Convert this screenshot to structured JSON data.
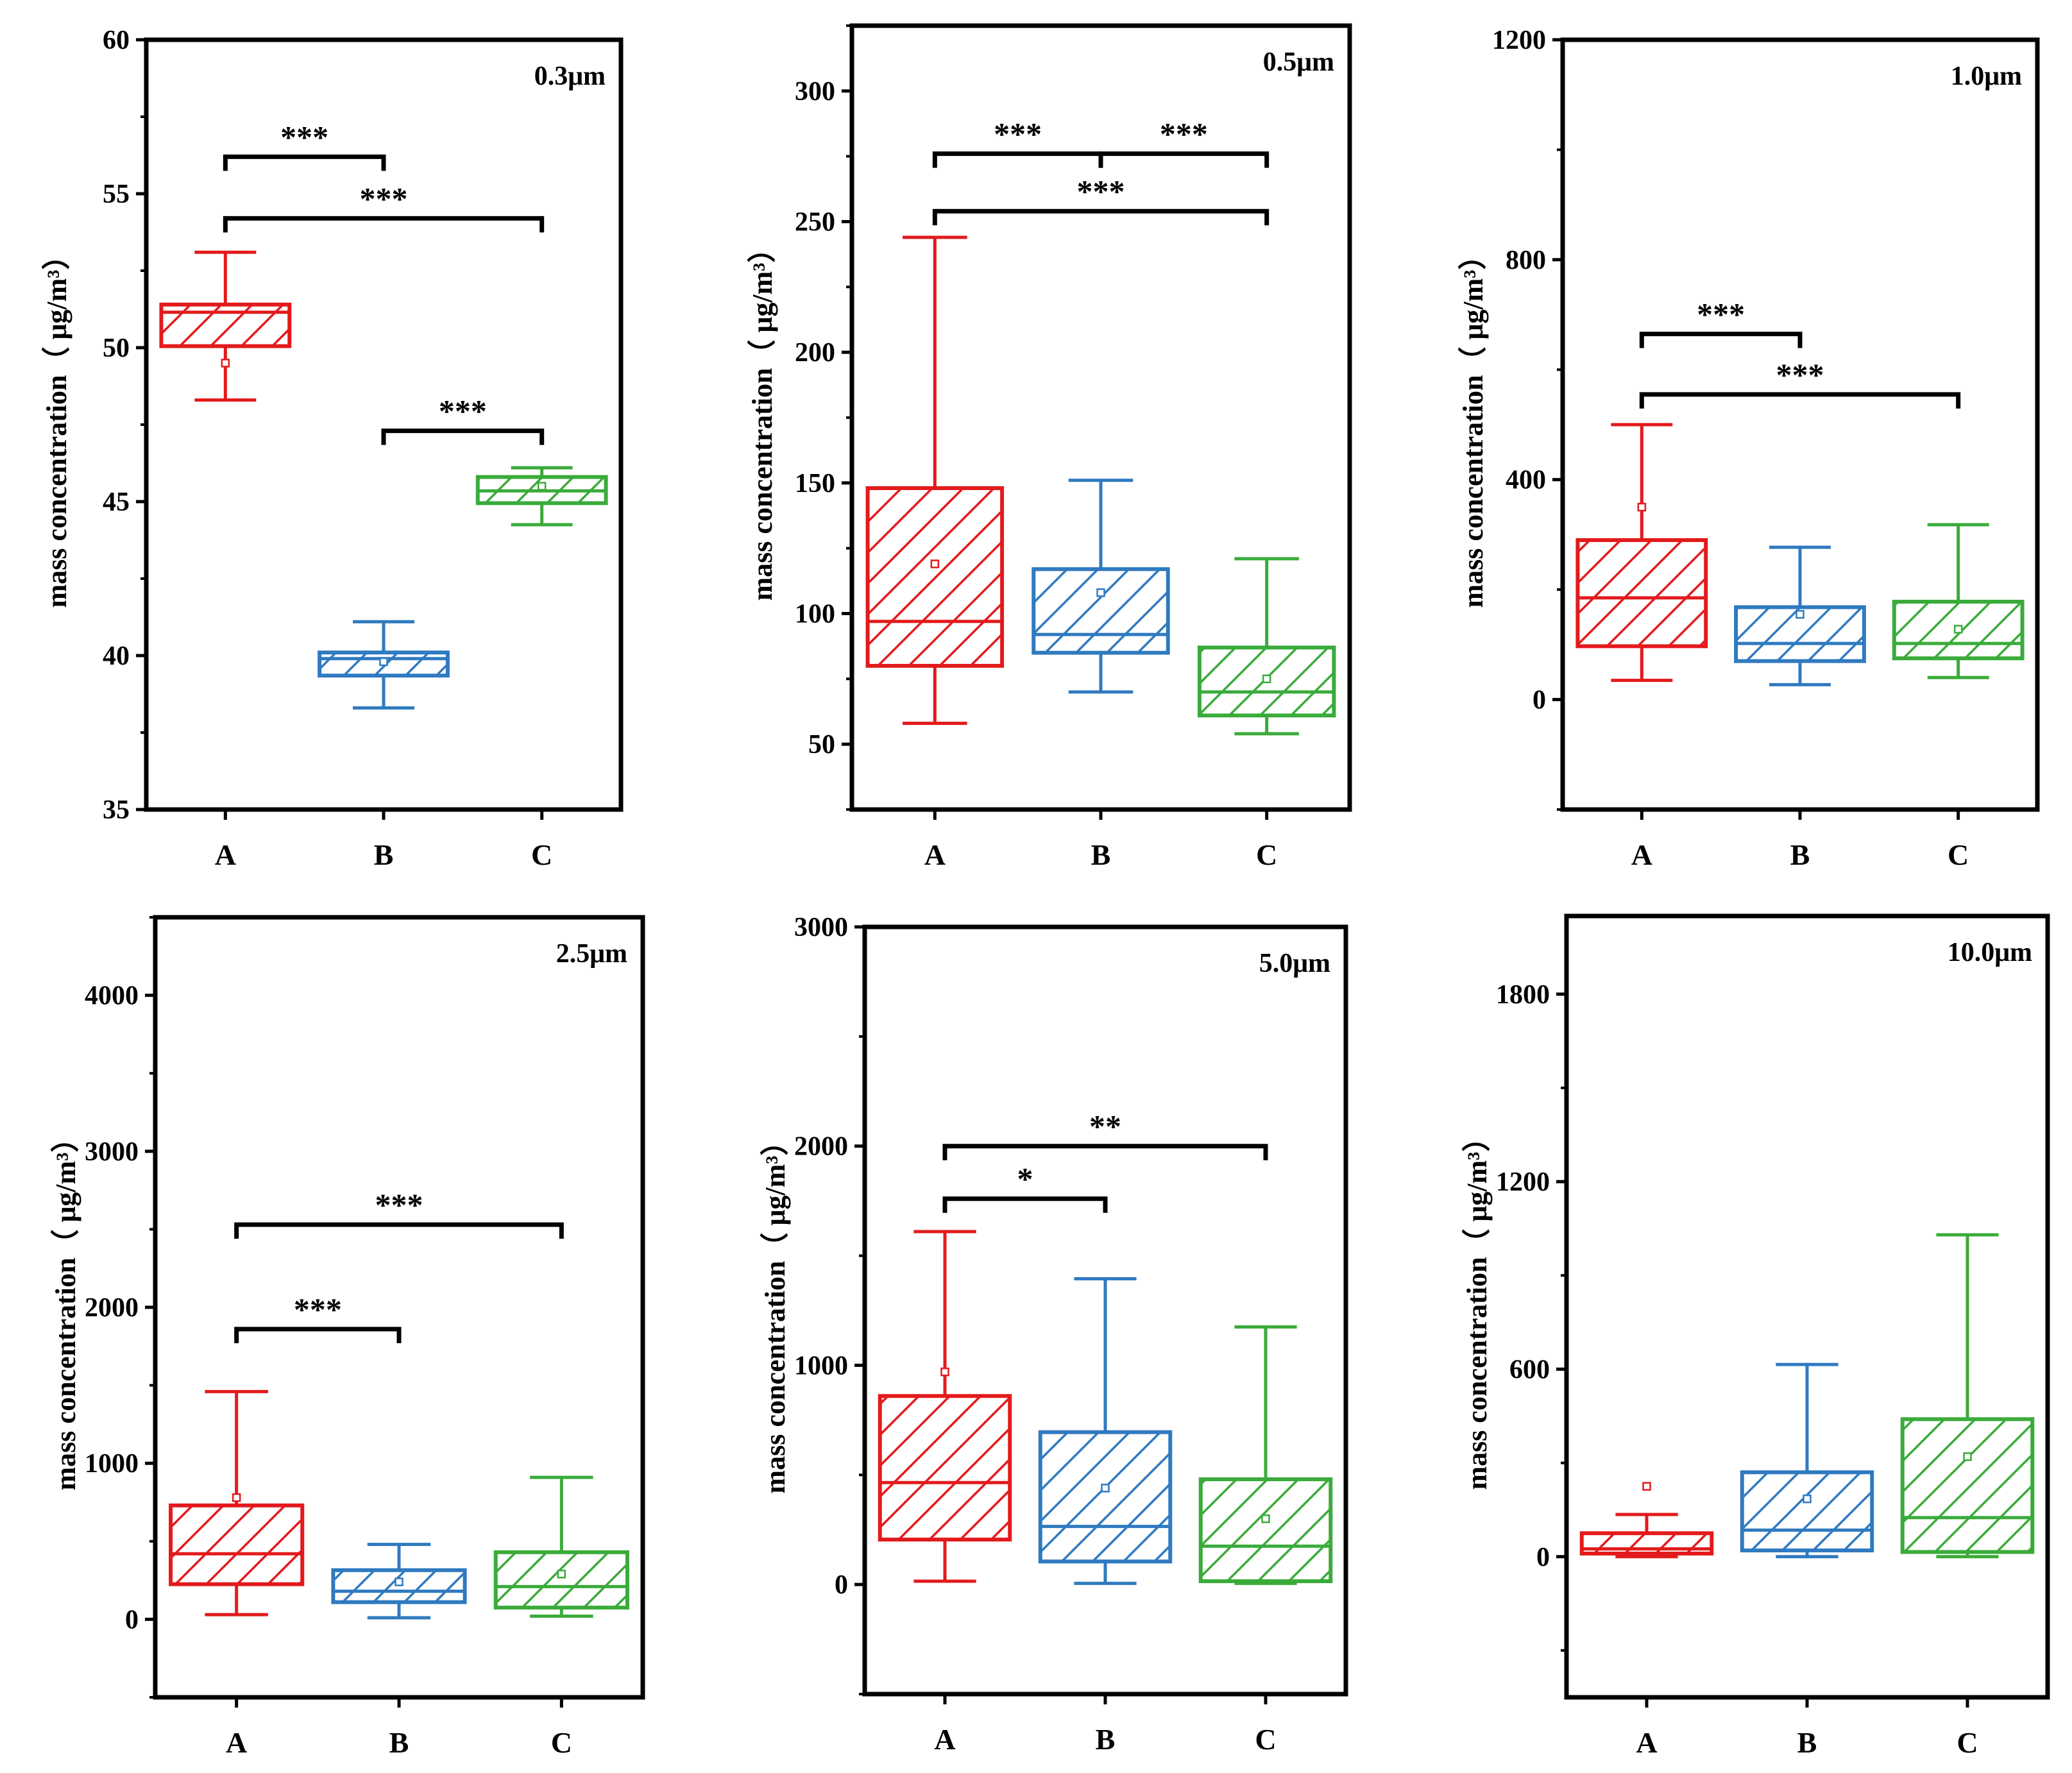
{
  "figure": {
    "description_title": ""
  },
  "chart_data": [
    {
      "type": "box",
      "panel_label": "0.3μm",
      "ylabel": "mass concentration（ μg/m³）",
      "ylim": [
        35,
        60
      ],
      "ticks": [
        35,
        40,
        45,
        50,
        55,
        60
      ],
      "tick_labels": [
        "35",
        "40",
        "45",
        "50",
        "55",
        "60"
      ],
      "minor_step": 2.5,
      "categories": [
        "A",
        "B",
        "C"
      ],
      "colors": [
        "#e31a1c",
        "#2f7ac0",
        "#3aab3a"
      ],
      "series": [
        {
          "name": "A",
          "whisker_low": 48.3,
          "q1": 50.05,
          "median": 51.15,
          "q3": 51.4,
          "whisker_high": 53.1,
          "mean": 49.5
        },
        {
          "name": "B",
          "whisker_low": 38.3,
          "q1": 39.35,
          "median": 39.9,
          "q3": 40.1,
          "whisker_high": 41.1,
          "mean": 39.8
        },
        {
          "name": "C",
          "whisker_low": 44.25,
          "q1": 44.95,
          "median": 45.35,
          "q3": 45.8,
          "whisker_high": 46.1,
          "mean": 45.5
        }
      ],
      "significance": [
        {
          "from": 0,
          "to": 1,
          "y": 56.2,
          "label": "***"
        },
        {
          "from": 0,
          "to": 2,
          "y": 54.2,
          "label": "***"
        },
        {
          "from": 1,
          "to": 2,
          "y": 47.3,
          "label": "***"
        }
      ]
    },
    {
      "type": "box",
      "panel_label": "0.5μm",
      "ylabel": "mass concentration（ μg/m³）",
      "ylim": [
        25,
        325
      ],
      "ticks": [
        50,
        100,
        150,
        200,
        250,
        300
      ],
      "tick_labels": [
        "50",
        "100",
        "150",
        "200",
        "250",
        "300"
      ],
      "minor_step": 25,
      "categories": [
        "A",
        "B",
        "C"
      ],
      "colors": [
        "#e31a1c",
        "#2f7ac0",
        "#3aab3a"
      ],
      "series": [
        {
          "name": "A",
          "whisker_low": 58,
          "q1": 80,
          "median": 97,
          "q3": 148,
          "whisker_high": 244,
          "mean": 119
        },
        {
          "name": "B",
          "whisker_low": 70,
          "q1": 85,
          "median": 92,
          "q3": 117,
          "whisker_high": 151,
          "mean": 108
        },
        {
          "name": "C",
          "whisker_low": 54,
          "q1": 61,
          "median": 70,
          "q3": 87,
          "whisker_high": 121,
          "mean": 75
        }
      ],
      "significance": [
        {
          "from": 0,
          "to": 1,
          "y": 276,
          "label": "***"
        },
        {
          "from": 1,
          "to": 2,
          "y": 276,
          "label": "***"
        },
        {
          "from": 0,
          "to": 2,
          "y": 254,
          "label": "***"
        }
      ]
    },
    {
      "type": "box",
      "panel_label": "1.0μm",
      "ylabel": "mass concentration（ μg/m³）",
      "ylim": [
        -200,
        1200
      ],
      "ticks": [
        0,
        400,
        800,
        1200
      ],
      "tick_labels": [
        "0",
        "400",
        "800",
        "1200"
      ],
      "minor_step": 200,
      "categories": [
        "A",
        "B",
        "C"
      ],
      "colors": [
        "#e31a1c",
        "#2f7ac0",
        "#3aab3a"
      ],
      "series": [
        {
          "name": "A",
          "whisker_low": 35,
          "q1": 97,
          "median": 185,
          "q3": 290,
          "whisker_high": 500,
          "mean": 350
        },
        {
          "name": "B",
          "whisker_low": 27,
          "q1": 70,
          "median": 102,
          "q3": 168,
          "whisker_high": 277,
          "mean": 155
        },
        {
          "name": "C",
          "whisker_low": 40,
          "q1": 75,
          "median": 102,
          "q3": 178,
          "whisker_high": 318,
          "mean": 128
        }
      ],
      "significance": [
        {
          "from": 0,
          "to": 1,
          "y": 665,
          "label": "***"
        },
        {
          "from": 0,
          "to": 2,
          "y": 555,
          "label": "***"
        }
      ]
    },
    {
      "type": "box",
      "panel_label": "2.5μm",
      "ylabel": "mass concentration（ μg/m³）",
      "ylim": [
        -500,
        4500
      ],
      "ticks": [
        0,
        1000,
        2000,
        3000,
        4000
      ],
      "tick_labels": [
        "0",
        "1000",
        "2000",
        "3000",
        "4000"
      ],
      "minor_step": 500,
      "categories": [
        "A",
        "B",
        "C"
      ],
      "colors": [
        "#e31a1c",
        "#2f7ac0",
        "#3aab3a"
      ],
      "series": [
        {
          "name": "A",
          "whisker_low": 30,
          "q1": 225,
          "median": 420,
          "q3": 730,
          "whisker_high": 1460,
          "mean": 780
        },
        {
          "name": "B",
          "whisker_low": 10,
          "q1": 110,
          "median": 180,
          "q3": 315,
          "whisker_high": 480,
          "mean": 240
        },
        {
          "name": "C",
          "whisker_low": 20,
          "q1": 75,
          "median": 210,
          "q3": 430,
          "whisker_high": 910,
          "mean": 290
        }
      ],
      "significance": [
        {
          "from": 0,
          "to": 2,
          "y": 2530,
          "label": "***"
        },
        {
          "from": 0,
          "to": 1,
          "y": 1860,
          "label": "***"
        }
      ]
    },
    {
      "type": "box",
      "panel_label": "5.0μm",
      "ylabel": "mass concentration（ μg/m³）",
      "ylim": [
        -500,
        3000
      ],
      "ticks": [
        0,
        1000,
        2000,
        3000
      ],
      "tick_labels": [
        "0",
        "1000",
        "2000",
        "3000"
      ],
      "minor_step": 500,
      "categories": [
        "A",
        "B",
        "C"
      ],
      "colors": [
        "#e31a1c",
        "#2f7ac0",
        "#3aab3a"
      ],
      "series": [
        {
          "name": "A",
          "whisker_low": 15,
          "q1": 205,
          "median": 465,
          "q3": 860,
          "whisker_high": 1610,
          "mean": 970
        },
        {
          "name": "B",
          "whisker_low": 5,
          "q1": 105,
          "median": 265,
          "q3": 695,
          "whisker_high": 1395,
          "mean": 440
        },
        {
          "name": "C",
          "whisker_low": 5,
          "q1": 15,
          "median": 175,
          "q3": 480,
          "whisker_high": 1175,
          "mean": 300
        }
      ],
      "significance": [
        {
          "from": 0,
          "to": 2,
          "y": 2000,
          "label": "**"
        },
        {
          "from": 0,
          "to": 1,
          "y": 1760,
          "label": "*"
        }
      ]
    },
    {
      "type": "box",
      "panel_label": "10.0μm",
      "ylabel": "mass concentration（ μg/m³）",
      "ylim": [
        -450,
        2050
      ],
      "ticks": [
        0,
        600,
        1200,
        1800
      ],
      "tick_labels": [
        "0",
        "600",
        "1200",
        "1800"
      ],
      "minor_step": 300,
      "categories": [
        "A",
        "B",
        "C"
      ],
      "colors": [
        "#e31a1c",
        "#2f7ac0",
        "#3aab3a"
      ],
      "series": [
        {
          "name": "A",
          "whisker_low": 0,
          "q1": 10,
          "median": 25,
          "q3": 75,
          "whisker_high": 135,
          "mean": 225
        },
        {
          "name": "B",
          "whisker_low": 0,
          "q1": 20,
          "median": 85,
          "q3": 270,
          "whisker_high": 615,
          "mean": 185
        },
        {
          "name": "C",
          "whisker_low": 0,
          "q1": 15,
          "median": 125,
          "q3": 440,
          "whisker_high": 1030,
          "mean": 320
        }
      ],
      "significance": []
    }
  ]
}
